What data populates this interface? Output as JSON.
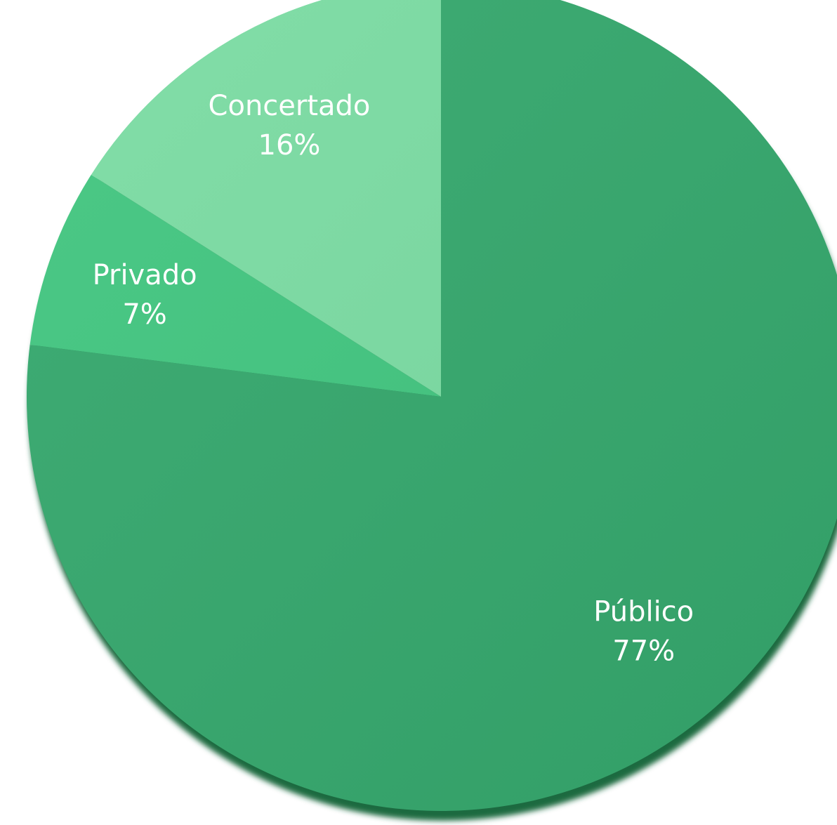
{
  "chart_data": {
    "type": "pie",
    "start_angle_deg": 0,
    "direction": "clockwise",
    "slices": [
      {
        "label": "Público",
        "value": 77,
        "value_label": "77%",
        "color": "#35a86d"
      },
      {
        "label": "Privado",
        "value": 7,
        "value_label": "7%",
        "color": "#42c680"
      },
      {
        "label": "Concertado",
        "value": 16,
        "value_label": "16%",
        "color": "#7bdca3"
      }
    ],
    "shadow_color": "#1f6a41"
  }
}
